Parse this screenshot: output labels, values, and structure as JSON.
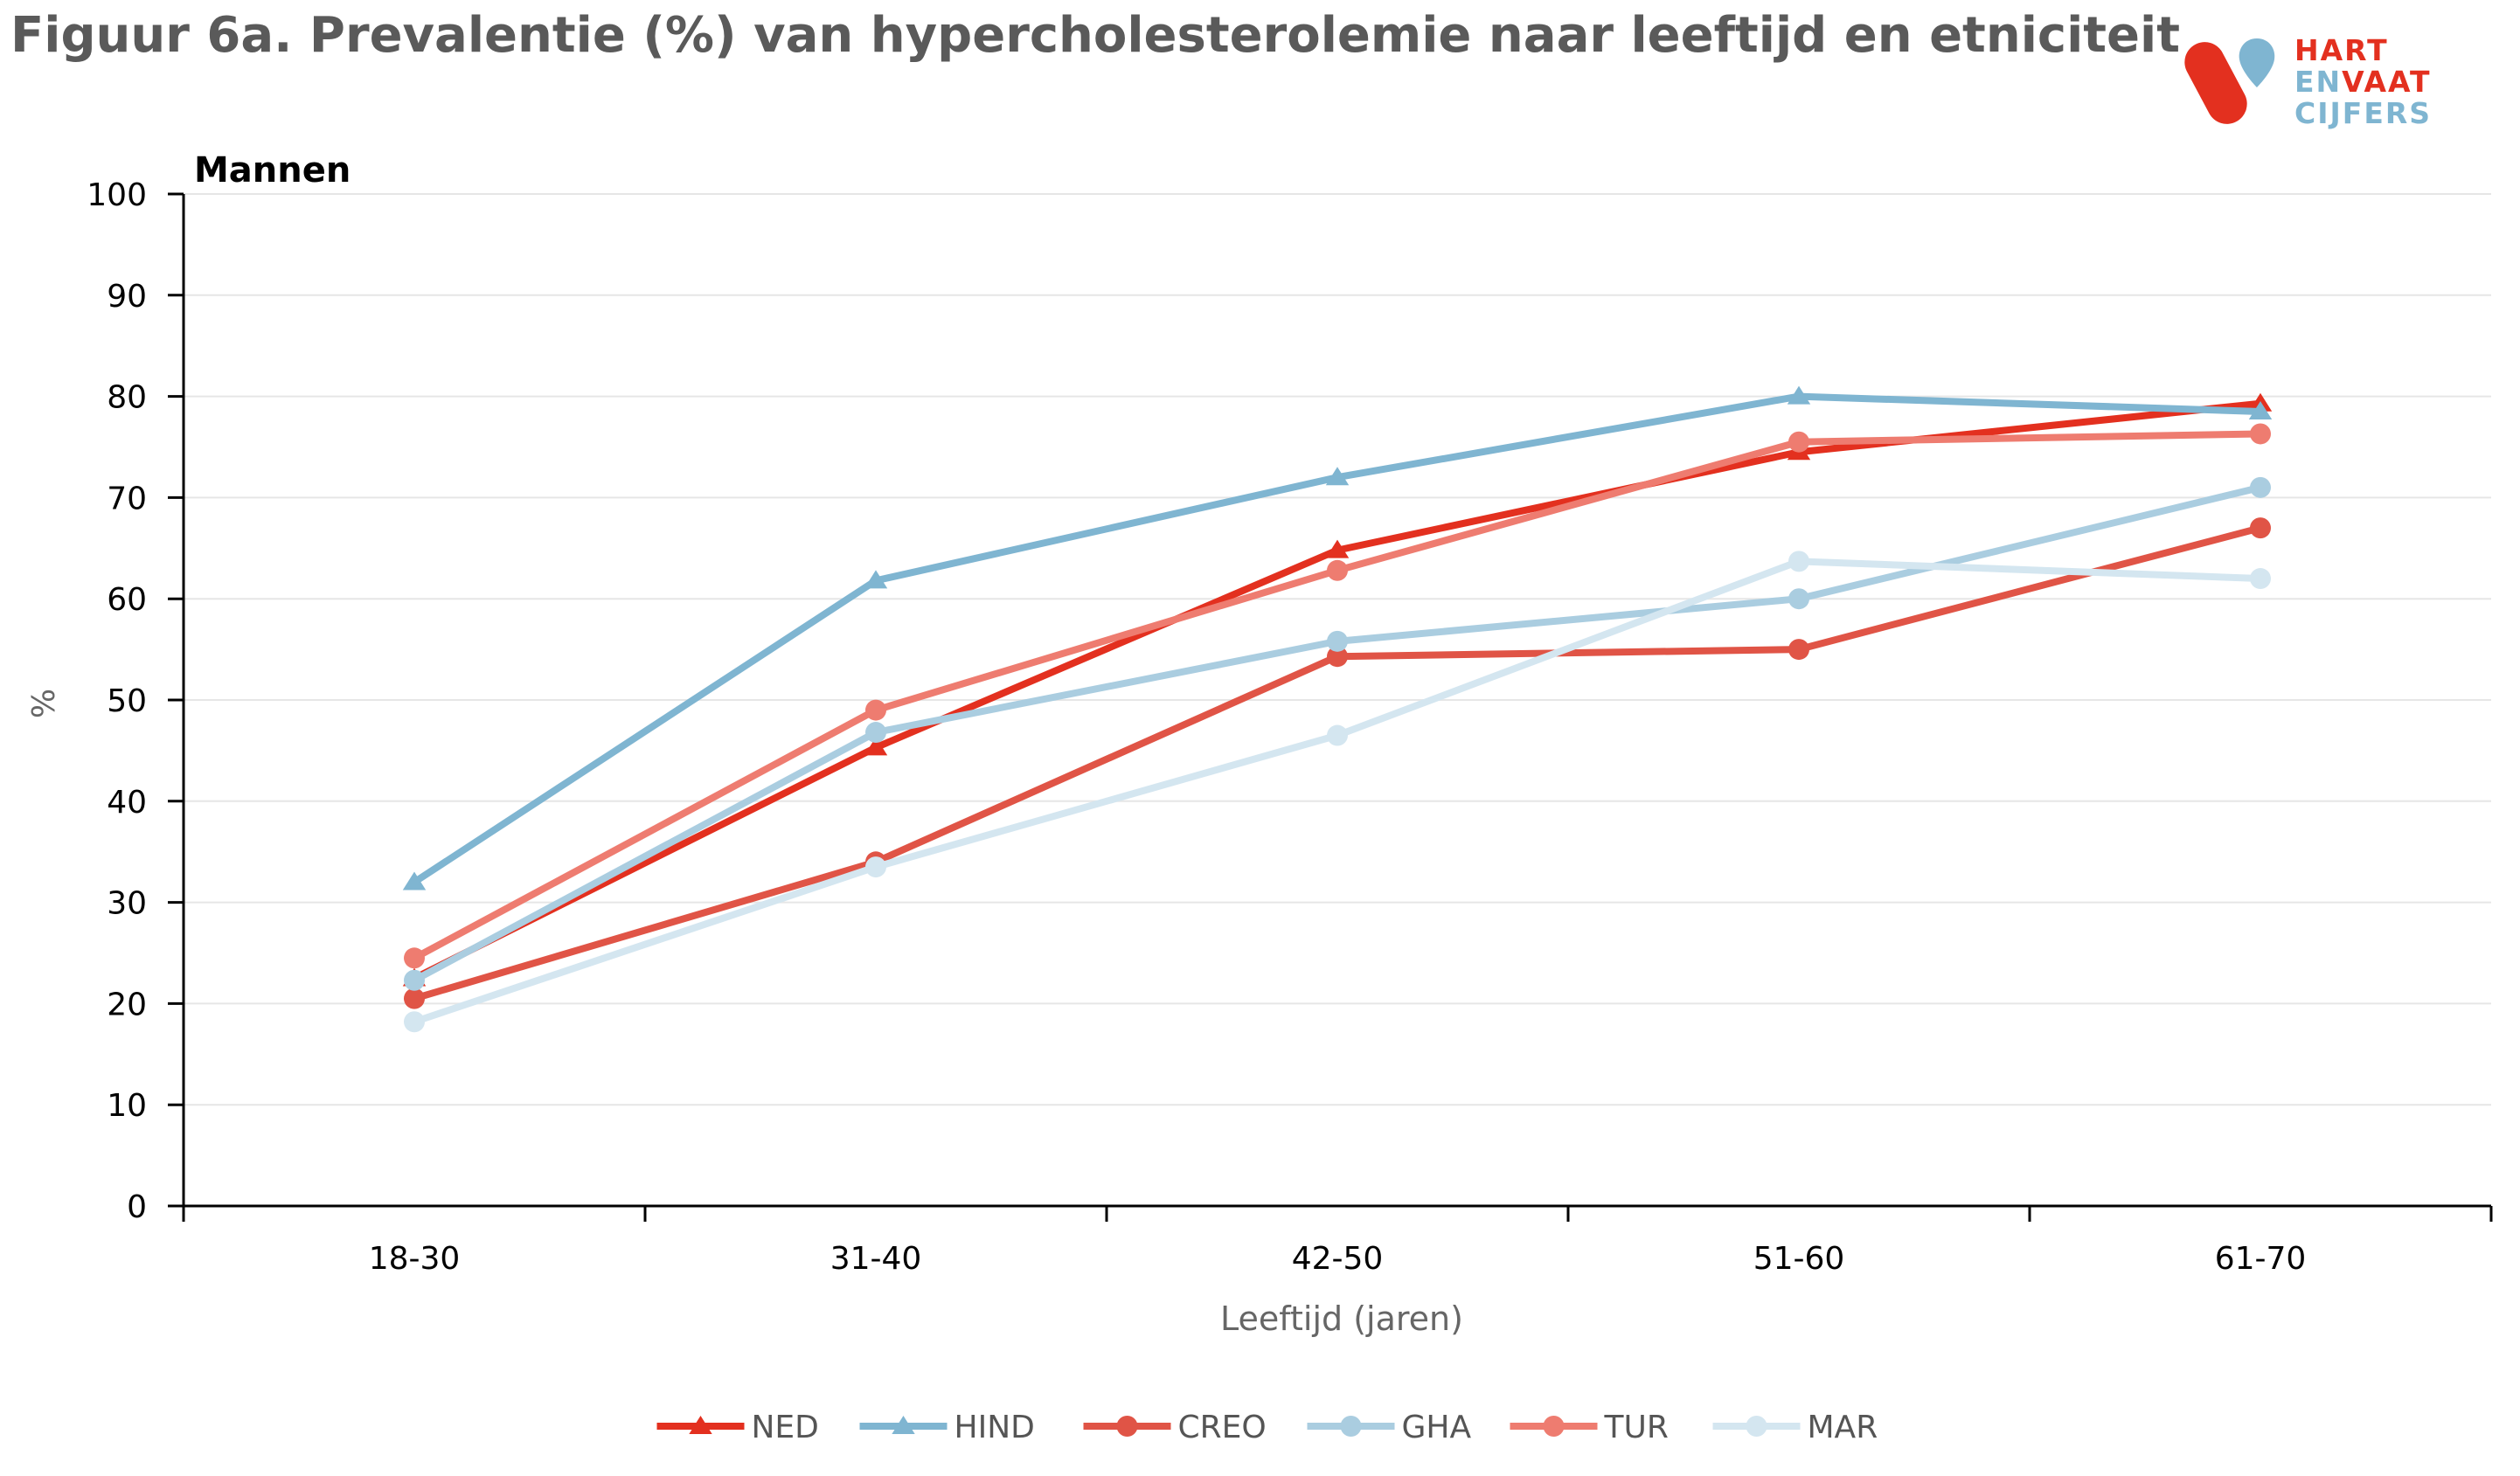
{
  "title": "Figuur 6a. Prevalentie (%) van hypercholesterolemie naar leeftijd en etniciteit",
  "logo": {
    "line1": "HART",
    "line2a": "EN",
    "line2b": "VAAT",
    "line3": "CIJFERS",
    "colors": {
      "red": "#e3301f",
      "blue": "#7fb5d1"
    }
  },
  "chart_data": {
    "type": "line",
    "subtitle": "Mannen",
    "xlabel": "Leeftijd (jaren)",
    "ylabel": "%",
    "ylim": [
      0,
      100
    ],
    "yticks": [
      "0",
      "10",
      "20",
      "30",
      "40",
      "50",
      "60",
      "70",
      "80",
      "90",
      "100"
    ],
    "categories": [
      "18-30",
      "31-40",
      "42-50",
      "51-60",
      "61-70"
    ],
    "grid": true,
    "legend_position": "bottom",
    "series": [
      {
        "name": "NED",
        "color": "#e3301f",
        "marker": "triangle",
        "values": [
          22.5,
          45.3,
          64.8,
          74.5,
          79.3
        ]
      },
      {
        "name": "HIND",
        "color": "#7fb5d1",
        "marker": "triangle",
        "values": [
          32.0,
          61.8,
          72.0,
          80.0,
          78.5
        ]
      },
      {
        "name": "CREO",
        "color": "#e05446",
        "marker": "circle",
        "values": [
          20.5,
          34.0,
          54.3,
          55.0,
          67.0
        ]
      },
      {
        "name": "GHA",
        "color": "#aacde0",
        "marker": "circle",
        "values": [
          22.3,
          46.8,
          55.8,
          60.0,
          71.0
        ]
      },
      {
        "name": "TUR",
        "color": "#ee7c70",
        "marker": "circle",
        "values": [
          24.5,
          49.0,
          62.8,
          75.5,
          76.3
        ]
      },
      {
        "name": "MAR",
        "color": "#d4e6f0",
        "marker": "circle",
        "values": [
          18.2,
          33.5,
          46.5,
          63.7,
          62.0
        ]
      }
    ]
  }
}
